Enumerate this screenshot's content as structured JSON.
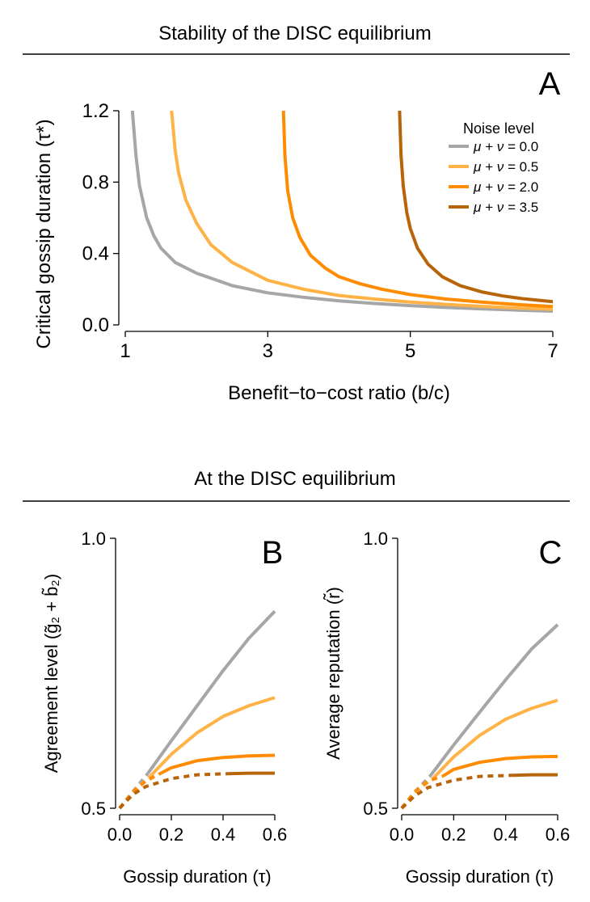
{
  "headers": {
    "top": "Stability of the DISC equilibrium",
    "bottom": "At the DISC equilibrium"
  },
  "legend": {
    "title": "Noise level",
    "prefix": "μ + ν = ",
    "entries": [
      "0.0",
      "0.5",
      "2.0",
      "3.5"
    ]
  },
  "colors": {
    "n0": "#a6a6a6",
    "n05": "#ffb347",
    "n2": "#ff8c00",
    "n35": "#b8650a",
    "axis": "#000000"
  },
  "chart_data": [
    {
      "panel": "A",
      "type": "line",
      "title": "",
      "xlabel": "Benefit−to−cost ratio (b/c)",
      "ylabel": "Critical gossip duration (τ*)",
      "xlim": [
        1,
        7
      ],
      "ylim": [
        0,
        1.2
      ],
      "xticks": [
        "1",
        "3",
        "5",
        "7"
      ],
      "yticks": [
        "0.0",
        "0.4",
        "0.8",
        "1.2"
      ],
      "series": [
        {
          "name": "μ + ν = 0.0",
          "x": [
            1.1,
            1.15,
            1.2,
            1.3,
            1.4,
            1.5,
            1.7,
            2.0,
            2.5,
            3.0,
            3.5,
            4.0,
            4.5,
            5.0,
            5.5,
            6.0,
            6.5,
            7.0
          ],
          "y": [
            1.2,
            0.95,
            0.78,
            0.6,
            0.5,
            0.43,
            0.35,
            0.29,
            0.22,
            0.18,
            0.155,
            0.135,
            0.12,
            0.108,
            0.098,
            0.09,
            0.083,
            0.077
          ]
        },
        {
          "name": "μ + ν = 0.5",
          "x": [
            1.65,
            1.7,
            1.75,
            1.85,
            2.0,
            2.2,
            2.5,
            3.0,
            3.5,
            4.0,
            4.5,
            5.0,
            5.5,
            6.0,
            6.5,
            7.0
          ],
          "y": [
            1.2,
            0.98,
            0.85,
            0.7,
            0.57,
            0.45,
            0.35,
            0.25,
            0.2,
            0.165,
            0.145,
            0.128,
            0.115,
            0.104,
            0.095,
            0.088
          ]
        },
        {
          "name": "μ + ν = 2.0",
          "x": [
            3.22,
            3.24,
            3.28,
            3.35,
            3.45,
            3.6,
            3.8,
            4.0,
            4.3,
            4.6,
            5.0,
            5.5,
            6.0,
            6.5,
            7.0
          ],
          "y": [
            1.2,
            0.95,
            0.75,
            0.6,
            0.49,
            0.39,
            0.32,
            0.27,
            0.23,
            0.2,
            0.17,
            0.145,
            0.128,
            0.114,
            0.103
          ]
        },
        {
          "name": "μ + ν = 3.5",
          "x": [
            4.85,
            4.87,
            4.9,
            4.95,
            5.0,
            5.1,
            5.25,
            5.45,
            5.7,
            6.0,
            6.3,
            6.6,
            7.0
          ],
          "y": [
            1.2,
            0.95,
            0.78,
            0.63,
            0.54,
            0.43,
            0.34,
            0.27,
            0.22,
            0.185,
            0.162,
            0.146,
            0.13
          ]
        }
      ]
    },
    {
      "panel": "B",
      "type": "line",
      "title": "",
      "xlabel": "Gossip duration (τ)",
      "ylabel": "Agreement level (g̃₂ + b̃₂)",
      "xlim": [
        0,
        0.6
      ],
      "ylim": [
        0.5,
        1.0
      ],
      "xticks": [
        "0.0",
        "0.2",
        "0.4",
        "0.6"
      ],
      "yticks": [
        "0.5",
        "1.0"
      ],
      "series": [
        {
          "name": "μ + ν = 0.0",
          "x_unstable": [
            0.0,
            0.05,
            0.11
          ],
          "y_unstable": [
            0.5,
            0.53,
            0.565
          ],
          "x": [
            0.11,
            0.2,
            0.3,
            0.4,
            0.5,
            0.6
          ],
          "y": [
            0.565,
            0.625,
            0.69,
            0.755,
            0.815,
            0.865
          ]
        },
        {
          "name": "μ + ν = 0.5",
          "x_unstable": [
            0.0,
            0.05,
            0.12
          ],
          "y_unstable": [
            0.5,
            0.53,
            0.56
          ],
          "x": [
            0.12,
            0.2,
            0.3,
            0.4,
            0.5,
            0.6
          ],
          "y": [
            0.56,
            0.6,
            0.64,
            0.67,
            0.69,
            0.705
          ]
        },
        {
          "name": "μ + ν = 2.0",
          "x_unstable": [
            0.0,
            0.05,
            0.1,
            0.16
          ],
          "y_unstable": [
            0.5,
            0.53,
            0.55,
            0.565
          ],
          "x": [
            0.16,
            0.2,
            0.3,
            0.4,
            0.5,
            0.6
          ],
          "y": [
            0.565,
            0.575,
            0.588,
            0.594,
            0.597,
            0.598
          ]
        },
        {
          "name": "μ + ν = 3.5",
          "x_unstable": [
            0.0,
            0.05,
            0.1,
            0.2,
            0.3,
            0.42
          ],
          "y_unstable": [
            0.5,
            0.525,
            0.54,
            0.555,
            0.562,
            0.564
          ],
          "x": [
            0.42,
            0.5,
            0.6
          ],
          "y": [
            0.564,
            0.565,
            0.565
          ]
        }
      ]
    },
    {
      "panel": "C",
      "type": "line",
      "title": "",
      "xlabel": "Gossip duration (τ)",
      "ylabel": "Average reputation (r̃)",
      "xlim": [
        0,
        0.6
      ],
      "ylim": [
        0.5,
        1.0
      ],
      "xticks": [
        "0.0",
        "0.2",
        "0.4",
        "0.6"
      ],
      "yticks": [
        "0.5",
        "1.0"
      ],
      "series": [
        {
          "name": "μ + ν = 0.0",
          "x_unstable": [
            0.0,
            0.05,
            0.11
          ],
          "y_unstable": [
            0.5,
            0.53,
            0.56
          ],
          "x": [
            0.11,
            0.2,
            0.3,
            0.4,
            0.5,
            0.6
          ],
          "y": [
            0.56,
            0.617,
            0.678,
            0.738,
            0.795,
            0.84
          ]
        },
        {
          "name": "μ + ν = 0.5",
          "x_unstable": [
            0.0,
            0.05,
            0.12
          ],
          "y_unstable": [
            0.5,
            0.53,
            0.555
          ],
          "x": [
            0.12,
            0.2,
            0.3,
            0.4,
            0.5,
            0.6
          ],
          "y": [
            0.555,
            0.595,
            0.635,
            0.665,
            0.685,
            0.7
          ]
        },
        {
          "name": "μ + ν = 2.0",
          "x_unstable": [
            0.0,
            0.05,
            0.1,
            0.16
          ],
          "y_unstable": [
            0.5,
            0.53,
            0.55,
            0.56
          ],
          "x": [
            0.16,
            0.2,
            0.3,
            0.4,
            0.5,
            0.6
          ],
          "y": [
            0.56,
            0.572,
            0.585,
            0.592,
            0.595,
            0.596
          ]
        },
        {
          "name": "μ + ν = 3.5",
          "x_unstable": [
            0.0,
            0.05,
            0.1,
            0.2,
            0.3,
            0.42
          ],
          "y_unstable": [
            0.5,
            0.523,
            0.538,
            0.552,
            0.559,
            0.561
          ],
          "x": [
            0.42,
            0.5,
            0.6
          ],
          "y": [
            0.561,
            0.562,
            0.562
          ]
        }
      ]
    }
  ]
}
